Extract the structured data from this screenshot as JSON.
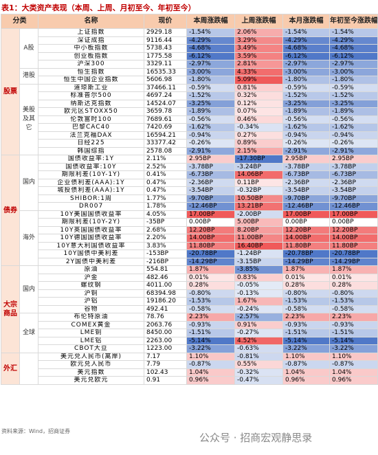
{
  "title": "表1：大类资产表现（本周、上周、月初至今、年初至今）",
  "header": [
    "分类",
    "名称",
    "现价",
    "本周涨跌幅",
    "上周涨跌幅",
    "本月涨跌幅",
    "年初至今涨跌幅"
  ],
  "groups": [
    {
      "label": "股票",
      "subgroups": [
        {
          "label": "A股",
          "rows": [
            [
              "上证指数",
              "2929.18",
              "-1.54%",
              "2.06%",
              "-1.54%",
              "-1.54%"
            ],
            [
              "深证成指",
              "9116.44",
              "-4.29%",
              "3.29%",
              "-4.29%",
              "-4.29%"
            ],
            [
              "中小板指数",
              "5738.43",
              "-4.68%",
              "3.49%",
              "-4.68%",
              "-4.68%"
            ],
            [
              "创业板指数",
              "1775.58",
              "-6.12%",
              "3.59%",
              "-6.12%",
              "-6.12%"
            ],
            [
              "沪深300",
              "3329.11",
              "-2.97%",
              "2.81%",
              "-2.97%",
              "-2.97%"
            ]
          ]
        },
        {
          "label": "港股",
          "rows": [
            [
              "恒生指数",
              "16535.33",
              "-3.00%",
              "4.33%",
              "-3.00%",
              "-3.00%"
            ],
            [
              "恒生中国企业指数",
              "5606.98",
              "-1.80%",
              "5.09%",
              "-1.80%",
              "-1.80%"
            ]
          ]
        },
        {
          "label": "美股及其它",
          "rows": [
            [
              "道琼斯工业",
              "37466.11",
              "-0.59%",
              "0.81%",
              "-0.59%",
              "-0.59%"
            ],
            [
              "标准普尔500",
              "4697.24",
              "-1.52%",
              "0.32%",
              "-1.52%",
              "-1.52%"
            ],
            [
              "纳斯达克指数",
              "14524.07",
              "-3.25%",
              "0.12%",
              "-3.25%",
              "-3.25%"
            ],
            [
              "欧元区STOXX50",
              "3659.78",
              "-1.89%",
              "0.07%",
              "-1.89%",
              "-1.89%"
            ],
            [
              "伦敦富时100",
              "7689.61",
              "-0.56%",
              "0.46%",
              "-0.56%",
              "-0.56%"
            ],
            [
              "巴黎CAC40",
              "7420.69",
              "-1.62%",
              "-0.34%",
              "-1.62%",
              "-1.62%"
            ],
            [
              "法兰克福DAX",
              "16594.21",
              "-0.94%",
              "0.27%",
              "-0.94%",
              "-0.94%"
            ],
            [
              "日经225",
              "33377.42",
              "-0.26%",
              "0.89%",
              "-0.26%",
              "-0.26%"
            ],
            [
              "韩国综指",
              "2578.08",
              "-2.91%",
              "2.15%",
              "-2.91%",
              "-2.91%"
            ]
          ]
        }
      ]
    },
    {
      "label": "债券",
      "subgroups": [
        {
          "label": "国内",
          "rows": [
            [
              "国债收益率:1Y",
              "2.11%",
              "2.95BP",
              "-17.30BP",
              "2.95BP",
              "2.95BP"
            ],
            [
              "国债收益率:10Y",
              "2.52%",
              "-3.78BP",
              "-3.24BP",
              "-3.78BP",
              "-3.78BP"
            ],
            [
              "期限利差(10Y-1Y)",
              "0.41%",
              "-6.73BP",
              "14.06BP",
              "-6.73BP",
              "-6.73BP"
            ],
            [
              "企业债利差(AAA):1Y",
              "0.47%",
              "-2.36BP",
              "0.11BP",
              "-2.36BP",
              "-2.36BP"
            ],
            [
              "城投债利差(AAA):1Y",
              "0.47%",
              "-3.54BP",
              "-0.32BP",
              "-3.54BP",
              "-3.54BP"
            ],
            [
              "SHIBOR:1周",
              "1.77%",
              "-9.70BP",
              "10.50BP",
              "-9.70BP",
              "-9.70BP"
            ],
            [
              "DR007",
              "1.78%",
              "-12.46BP",
              "13.21BP",
              "-12.46BP",
              "-12.46BP"
            ]
          ]
        },
        {
          "label": "海外",
          "rows": [
            [
              "10Y美国国债收益率",
              "4.05%",
              "17.00BP",
              "-2.00BP",
              "17.00BP",
              "17.00BP"
            ],
            [
              "期限利差(10Y-2Y)",
              "-35BP",
              "0.00BP",
              "5.00BP",
              "0.00BP",
              "0.00BP"
            ],
            [
              "10Y英国国债收益率",
              "2.68%",
              "12.20BP",
              "8.20BP",
              "12.20BP",
              "12.20BP"
            ],
            [
              "10Y德国国债收益率",
              "2.20%",
              "14.00BP",
              "11.00BP",
              "14.00BP",
              "14.00BP"
            ],
            [
              "10Y意大利国债收益率",
              "3.83%",
              "11.80BP",
              "16.40BP",
              "11.80BP",
              "11.80BP"
            ],
            [
              "10Y国债中美利差",
              "-153BP",
              "-20.78BP",
              "-1.24BP",
              "-20.78BP",
              "-20.78BP"
            ],
            [
              "2Y国债中美利差",
              "-216BP",
              "-14.29BP",
              "-3.15BP",
              "-14.29BP",
              "-14.29BP"
            ]
          ]
        }
      ]
    },
    {
      "label": "大宗商品",
      "subgroups": [
        {
          "label": "国内",
          "rows": [
            [
              "原油",
              "554.81",
              "1.87%",
              "-3.85%",
              "1.87%",
              "1.87%"
            ],
            [
              "沪金",
              "482.46",
              "0.01%",
              "0.83%",
              "0.01%",
              "0.01%"
            ],
            [
              "螺纹钢",
              "4011.00",
              "0.28%",
              "-0.05%",
              "0.28%",
              "0.28%"
            ],
            [
              "沪铜",
              "68394.98",
              "-0.80%",
              "-0.13%",
              "-0.80%",
              "-0.80%"
            ],
            [
              "沪铝",
              "19186.20",
              "-1.53%",
              "1.67%",
              "-1.53%",
              "-1.53%"
            ],
            [
              "谷物",
              "492.41",
              "-0.58%",
              "-0.24%",
              "-0.58%",
              "-0.58%"
            ]
          ]
        },
        {
          "label": "全球",
          "rows": [
            [
              "布伦特原油",
              "78.76",
              "2.23%",
              "-2.57%",
              "2.23%",
              "2.23%"
            ],
            [
              "COMEX黄金",
              "2063.76",
              "-0.93%",
              "0.91%",
              "-0.93%",
              "-0.93%"
            ],
            [
              "LME铜",
              "8450.00",
              "-1.51%",
              "-0.27%",
              "-1.51%",
              "-1.51%"
            ],
            [
              "LME铝",
              "2263.00",
              "-5.14%",
              "4.52%",
              "-5.14%",
              "-5.14%"
            ],
            [
              "CBOT大豆",
              "1223.00",
              "-3.22%",
              "-0.63%",
              "-3.22%",
              "-3.22%"
            ]
          ]
        }
      ]
    },
    {
      "label": "外汇",
      "subgroups": [
        {
          "rows": [
            [
              "美元兑人民币(离岸)",
              "7.17",
              "1.10%",
              "-0.81%",
              "1.10%",
              "1.10%"
            ],
            [
              "欧元兑人民币",
              "7.79",
              "-0.87%",
              "0.55%",
              "-0.87%",
              "-0.87%"
            ],
            [
              "美元指数",
              "102.43",
              "1.04%",
              "-0.32%",
              "1.04%",
              "1.04%"
            ],
            [
              "美元兑欧元",
              "0.91",
              "0.96%",
              "-0.47%",
              "0.96%",
              "0.96%"
            ]
          ]
        }
      ]
    }
  ],
  "source": "资料来源：Wind，招商证券",
  "watermark": "公众号 · 招商宏观静思录"
}
